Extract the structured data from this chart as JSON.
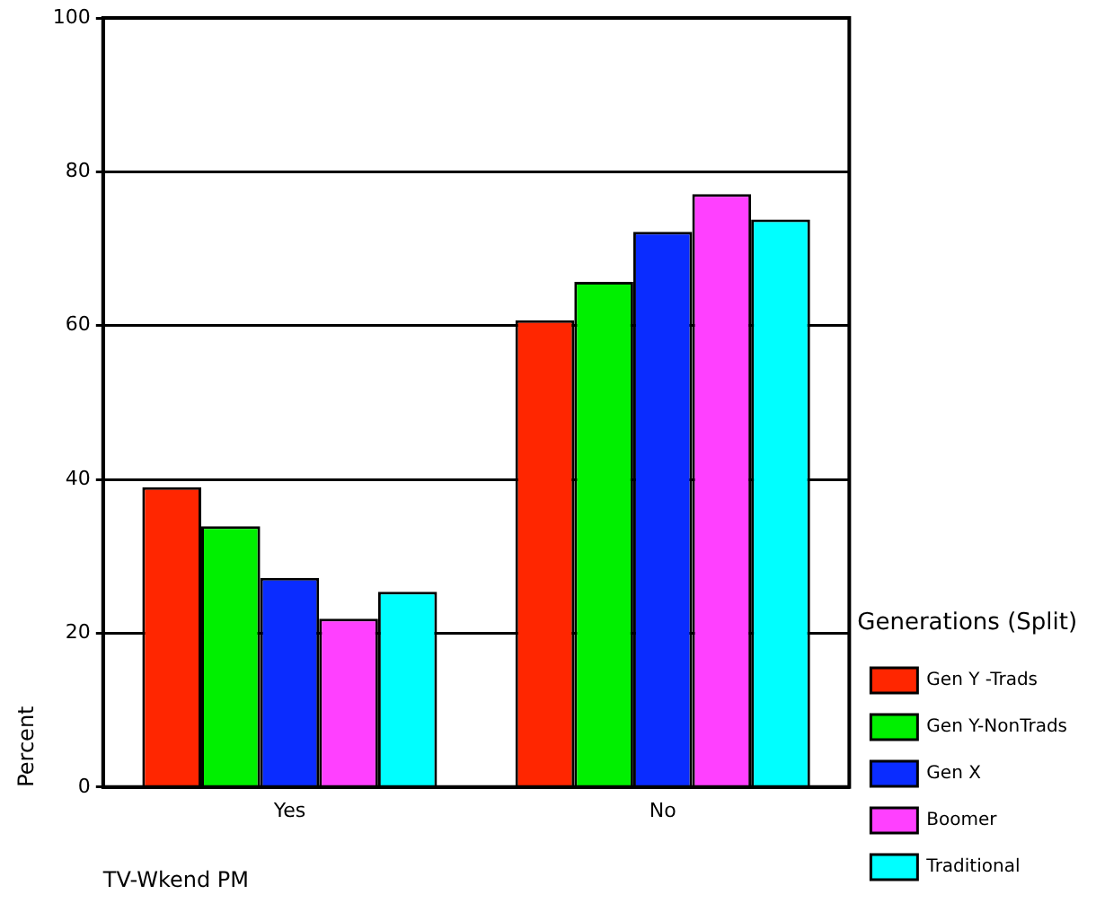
{
  "chart_data": {
    "type": "bar",
    "xlabel": "TV-Wkend PM",
    "ylabel": "Percent",
    "legend_title": "Generations (Split)",
    "categories": [
      "Yes",
      "No"
    ],
    "series": [
      {
        "name": "Gen Y -Trads",
        "color": "#ff2600",
        "values": [
          39.0,
          60.7
        ]
      },
      {
        "name": "Gen Y-NonTrads",
        "color": "#00f000",
        "values": [
          33.9,
          65.7
        ]
      },
      {
        "name": "Gen X",
        "color": "#0a2cff",
        "values": [
          27.2,
          72.2
        ]
      },
      {
        "name": "Boomer",
        "color": "#ff40ff",
        "values": [
          21.9,
          77.1
        ]
      },
      {
        "name": "Traditional",
        "color": "#00ffff",
        "values": [
          25.4,
          73.8
        ]
      }
    ],
    "ylim": [
      0,
      100
    ],
    "yticks": [
      0,
      20,
      40,
      60,
      80,
      100
    ],
    "grid": "y",
    "legend": "right"
  }
}
